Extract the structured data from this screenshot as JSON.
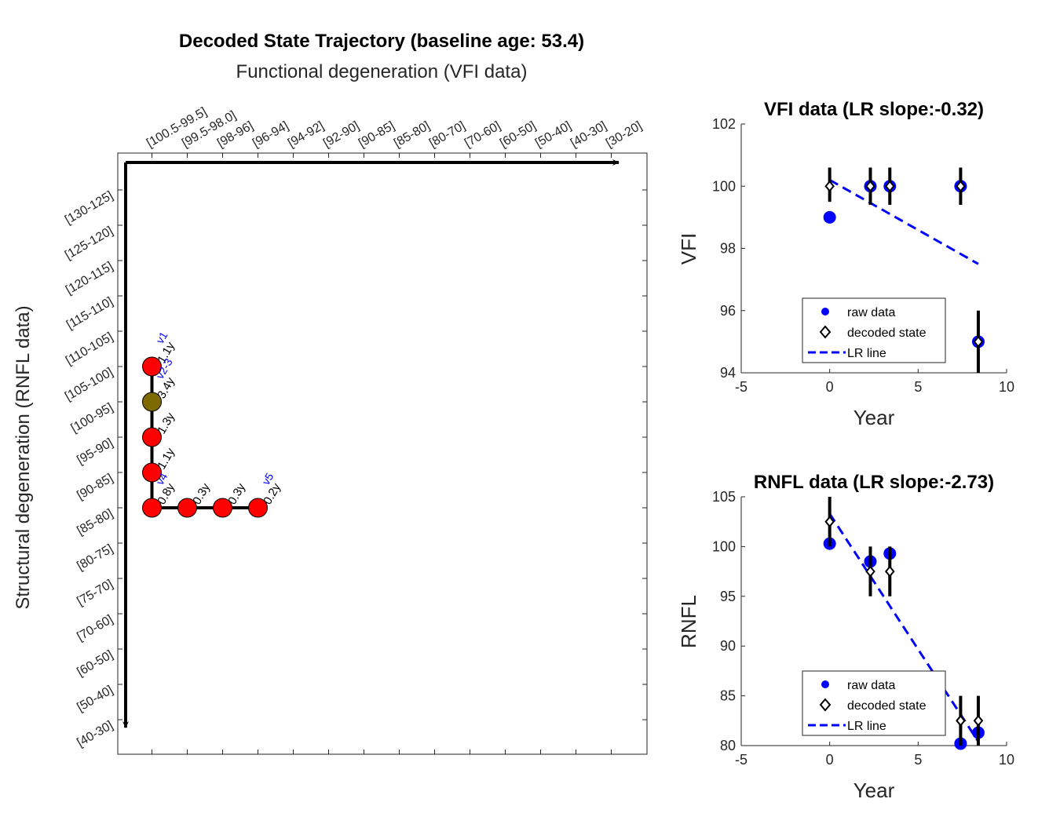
{
  "figure": {
    "title": "Decoded State Trajectory (baseline age: 53.4)",
    "subtitle": "Functional degeneration (VFI data)",
    "ylabel": "Structural degeneration (RNFL data)"
  },
  "chart_data": [
    {
      "type": "scatter",
      "title": "Decoded State Trajectory (baseline age: 53.4)",
      "subtitle": "Functional degeneration (VFI data)",
      "xlabel": "Functional degeneration (VFI data)",
      "ylabel": "Structural degeneration (RNFL data)",
      "x_categories": [
        "[100.5-99.5]",
        "[99.5-98.0]",
        "[98-96]",
        "[96-94]",
        "[94-92]",
        "[92-90]",
        "[90-85]",
        "[85-80]",
        "[80-70]",
        "[70-60]",
        "[60-50]",
        "[50-40]",
        "[40-30]",
        "[30-20]"
      ],
      "y_categories": [
        "[130-125]",
        "[125-120]",
        "[120-115]",
        "[115-110]",
        "[110-105]",
        "[105-100]",
        "[100-95]",
        "[95-90]",
        "[90-85]",
        "[85-80]",
        "[80-75]",
        "[75-70]",
        "[70-60]",
        "[60-50]",
        "[50-40]",
        "[40-30]"
      ],
      "states": [
        {
          "x": 0,
          "y": 5,
          "color": "#ff0000",
          "duration": "1.1y",
          "visit": "v1"
        },
        {
          "x": 0,
          "y": 6,
          "color": "#7f6a00",
          "duration": "3.4y",
          "visit": "v2-3"
        },
        {
          "x": 0,
          "y": 7,
          "color": "#ff0000",
          "duration": "1.3y",
          "visit": ""
        },
        {
          "x": 0,
          "y": 8,
          "color": "#ff0000",
          "duration": "1.1y",
          "visit": ""
        },
        {
          "x": 0,
          "y": 9,
          "color": "#ff0000",
          "duration": "0.8y",
          "visit": "v4"
        },
        {
          "x": 1,
          "y": 9,
          "color": "#ff0000",
          "duration": "0.3y",
          "visit": ""
        },
        {
          "x": 2,
          "y": 9,
          "color": "#ff0000",
          "duration": "0.3y",
          "visit": ""
        },
        {
          "x": 3,
          "y": 9,
          "color": "#ff0000",
          "duration": "0.2y",
          "visit": "v5"
        }
      ]
    },
    {
      "type": "scatter",
      "title": "VFI data (LR slope:-0.32)",
      "xlabel": "Year",
      "ylabel": "VFI",
      "xlim": [
        -5,
        10
      ],
      "ylim": [
        94,
        102
      ],
      "xticks": [
        -5,
        0,
        5,
        10
      ],
      "yticks": [
        94,
        96,
        98,
        100,
        102
      ],
      "raw": [
        {
          "x": 0,
          "y": 99
        },
        {
          "x": 2.3,
          "y": 100
        },
        {
          "x": 3.4,
          "y": 100
        },
        {
          "x": 7.4,
          "y": 100
        },
        {
          "x": 8.4,
          "y": 95
        }
      ],
      "decoded": [
        {
          "x": 0,
          "y": 100,
          "lo": 99.5,
          "hi": 100.6
        },
        {
          "x": 2.3,
          "y": 100,
          "lo": 99.4,
          "hi": 100.6
        },
        {
          "x": 3.4,
          "y": 100,
          "lo": 99.4,
          "hi": 100.6
        },
        {
          "x": 7.4,
          "y": 100,
          "lo": 99.4,
          "hi": 100.6
        },
        {
          "x": 8.4,
          "y": 95,
          "lo": 94,
          "hi": 96
        }
      ],
      "lr_line": {
        "x": [
          0,
          8.4
        ],
        "y": [
          100.2,
          97.5
        ]
      },
      "legend": [
        "raw data",
        "decoded state",
        "LR line"
      ]
    },
    {
      "type": "scatter",
      "title": "RNFL data (LR slope:-2.73)",
      "xlabel": "Year",
      "ylabel": "RNFL",
      "xlim": [
        -5,
        10
      ],
      "ylim": [
        80,
        105
      ],
      "xticks": [
        -5,
        0,
        5,
        10
      ],
      "yticks": [
        80,
        85,
        90,
        95,
        100,
        105
      ],
      "raw": [
        {
          "x": 0,
          "y": 100.3
        },
        {
          "x": 2.3,
          "y": 98.5
        },
        {
          "x": 3.4,
          "y": 99.3
        },
        {
          "x": 7.4,
          "y": 80.2
        },
        {
          "x": 8.4,
          "y": 81.3
        }
      ],
      "decoded": [
        {
          "x": 0,
          "y": 102.5,
          "lo": 100,
          "hi": 105
        },
        {
          "x": 2.3,
          "y": 97.5,
          "lo": 95,
          "hi": 100
        },
        {
          "x": 3.4,
          "y": 97.5,
          "lo": 95,
          "hi": 100
        },
        {
          "x": 7.4,
          "y": 82.5,
          "lo": 80,
          "hi": 85
        },
        {
          "x": 8.4,
          "y": 82.5,
          "lo": 80,
          "hi": 85
        }
      ],
      "lr_line": {
        "x": [
          0,
          8.4
        ],
        "y": [
          103.3,
          80.4
        ]
      },
      "legend": [
        "raw data",
        "decoded state",
        "LR line"
      ]
    }
  ]
}
